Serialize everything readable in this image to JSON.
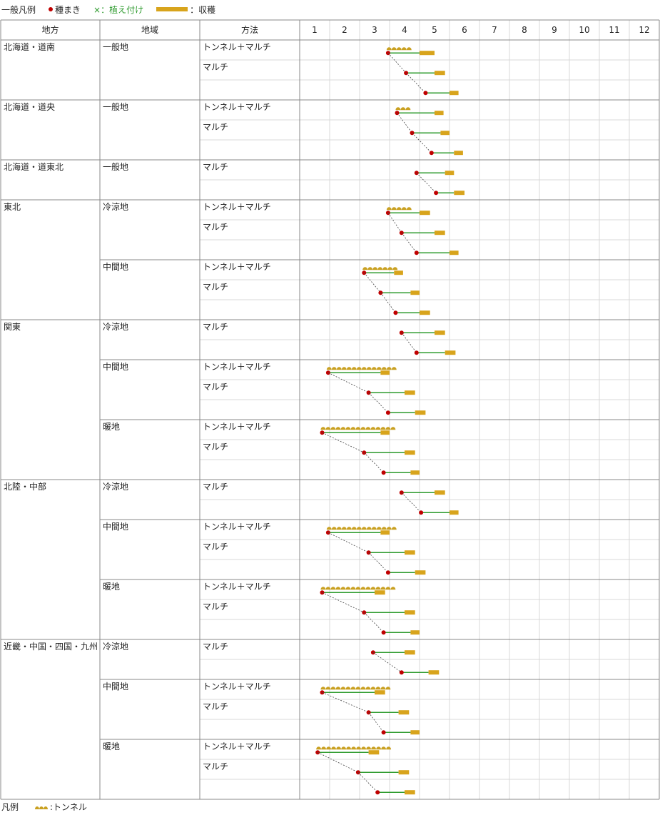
{
  "legend_top": {
    "title": "一般凡例",
    "sowing": "種まき",
    "planting": "×：植え付け",
    "harvest": "：収穫"
  },
  "legend_bottom": {
    "title": "凡例",
    "tunnel": ":トンネル"
  },
  "headers": {
    "region": "地方",
    "area": "地域",
    "method": "方法",
    "months": [
      "1",
      "2",
      "3",
      "4",
      "5",
      "6",
      "7",
      "8",
      "9",
      "10",
      "11",
      "12"
    ]
  },
  "colors": {
    "sowing": "#c00000",
    "growth": "#2e9b2e",
    "harvest": "#d8a41c",
    "tunnel": "#c9a020",
    "grid": "#d8d8d8",
    "border": "#888888"
  },
  "chart_data": {
    "type": "gantt",
    "x_unit": "month",
    "groups": [
      {
        "region": "北海道・道南",
        "area": "一般地",
        "rows": [
          {
            "method": "トンネル＋マルチ",
            "sow": 3.95,
            "harvest": [
              5.0,
              5.5
            ],
            "tunnel": [
              3.9,
              4.8
            ]
          },
          {
            "method": "マルチ",
            "sow": 4.55,
            "harvest": [
              5.5,
              5.85
            ]
          },
          {
            "method": "",
            "sow": 5.2,
            "harvest": [
              6.0,
              6.3
            ]
          }
        ]
      },
      {
        "region": "北海道・道央",
        "area": "一般地",
        "rows": [
          {
            "method": "トンネル＋マルチ",
            "sow": 4.25,
            "harvest": [
              5.5,
              5.8
            ],
            "tunnel": [
              4.2,
              4.8
            ]
          },
          {
            "method": "マルチ",
            "sow": 4.75,
            "harvest": [
              5.7,
              6.0
            ]
          },
          {
            "method": "",
            "sow": 5.4,
            "harvest": [
              6.15,
              6.45
            ]
          }
        ]
      },
      {
        "region": "北海道・道東北",
        "area": "一般地",
        "rows": [
          {
            "method": "マルチ",
            "sow": 4.9,
            "harvest": [
              5.85,
              6.15
            ]
          },
          {
            "method": "",
            "sow": 5.55,
            "harvest": [
              6.15,
              6.5
            ]
          }
        ]
      },
      {
        "region": "東北",
        "area": "冷涼地",
        "rows": [
          {
            "method": "トンネル＋マルチ",
            "sow": 3.95,
            "harvest": [
              5.0,
              5.35
            ],
            "tunnel": [
              3.9,
              4.8
            ]
          },
          {
            "method": "マルチ",
            "sow": 4.4,
            "harvest": [
              5.5,
              5.85
            ]
          },
          {
            "method": "",
            "sow": 4.9,
            "harvest": [
              6.0,
              6.3
            ]
          }
        ]
      },
      {
        "region": "",
        "area": "中間地",
        "rows": [
          {
            "method": "トンネル＋マルチ",
            "sow": 3.15,
            "harvest": [
              4.15,
              4.45
            ],
            "tunnel": [
              3.1,
              4.3
            ]
          },
          {
            "method": "マルチ",
            "sow": 3.7,
            "harvest": [
              4.7,
              5.0
            ]
          },
          {
            "method": "",
            "sow": 4.2,
            "harvest": [
              5.0,
              5.35
            ]
          }
        ]
      },
      {
        "region": "関東",
        "area": "冷涼地",
        "rows": [
          {
            "method": "マルチ",
            "sow": 4.4,
            "harvest": [
              5.5,
              5.85
            ]
          },
          {
            "method": "",
            "sow": 4.9,
            "harvest": [
              5.85,
              6.2
            ]
          }
        ]
      },
      {
        "region": "",
        "area": "中間地",
        "rows": [
          {
            "method": "トンネル＋マルチ",
            "sow": 1.95,
            "harvest": [
              3.7,
              4.0
            ],
            "tunnel": [
              1.9,
              4.3
            ]
          },
          {
            "method": "マルチ",
            "sow": 3.3,
            "harvest": [
              4.5,
              4.85
            ]
          },
          {
            "method": "",
            "sow": 3.95,
            "harvest": [
              4.85,
              5.2
            ]
          }
        ]
      },
      {
        "region": "",
        "area": "暖地",
        "rows": [
          {
            "method": "トンネル＋マルチ",
            "sow": 1.75,
            "harvest": [
              3.7,
              4.0
            ],
            "tunnel": [
              1.7,
              4.3
            ]
          },
          {
            "method": "マルチ",
            "sow": 3.15,
            "harvest": [
              4.5,
              4.85
            ]
          },
          {
            "method": "",
            "sow": 3.8,
            "harvest": [
              4.7,
              5.0
            ]
          }
        ]
      },
      {
        "region": "北陸・中部",
        "area": "冷涼地",
        "rows": [
          {
            "method": "マルチ",
            "sow": 4.4,
            "harvest": [
              5.5,
              5.85
            ]
          },
          {
            "method": "",
            "sow": 5.05,
            "harvest": [
              6.0,
              6.3
            ]
          }
        ]
      },
      {
        "region": "",
        "area": "中間地",
        "rows": [
          {
            "method": "トンネル＋マルチ",
            "sow": 1.95,
            "harvest": [
              3.7,
              4.0
            ],
            "tunnel": [
              1.9,
              4.3
            ]
          },
          {
            "method": "マルチ",
            "sow": 3.3,
            "harvest": [
              4.5,
              4.85
            ]
          },
          {
            "method": "",
            "sow": 3.95,
            "harvest": [
              4.85,
              5.2
            ]
          }
        ]
      },
      {
        "region": "",
        "area": "暖地",
        "rows": [
          {
            "method": "トンネル＋マルチ",
            "sow": 1.75,
            "harvest": [
              3.5,
              3.85
            ],
            "tunnel": [
              1.7,
              4.3
            ]
          },
          {
            "method": "マルチ",
            "sow": 3.15,
            "harvest": [
              4.5,
              4.85
            ]
          },
          {
            "method": "",
            "sow": 3.8,
            "harvest": [
              4.7,
              5.0
            ]
          }
        ]
      },
      {
        "region": "近畿・中国・四国・九州",
        "area": "冷涼地",
        "rows": [
          {
            "method": "マルチ",
            "sow": 3.45,
            "harvest": [
              4.5,
              4.85
            ]
          },
          {
            "method": "",
            "sow": 4.4,
            "harvest": [
              5.3,
              5.65
            ]
          }
        ]
      },
      {
        "region": "",
        "area": "中間地",
        "rows": [
          {
            "method": "トンネル＋マルチ",
            "sow": 1.75,
            "harvest": [
              3.5,
              3.85
            ],
            "tunnel": [
              1.7,
              4.1
            ]
          },
          {
            "method": "マルチ",
            "sow": 3.3,
            "harvest": [
              4.3,
              4.65
            ]
          },
          {
            "method": "",
            "sow": 3.8,
            "harvest": [
              4.7,
              5.0
            ]
          }
        ]
      },
      {
        "region": "",
        "area": "暖地",
        "rows": [
          {
            "method": "トンネル＋マルチ",
            "sow": 1.6,
            "harvest": [
              3.3,
              3.65
            ],
            "tunnel": [
              1.55,
              4.1
            ]
          },
          {
            "method": "マルチ",
            "sow": 2.95,
            "harvest": [
              4.3,
              4.65
            ]
          },
          {
            "method": "",
            "sow": 3.6,
            "harvest": [
              4.5,
              4.85
            ]
          }
        ]
      }
    ]
  }
}
